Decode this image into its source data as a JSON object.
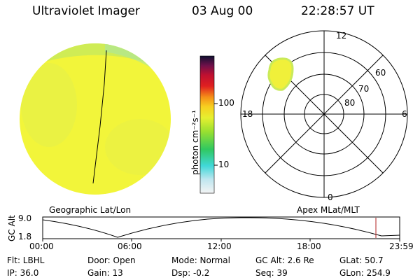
{
  "header": {
    "title": "Ultraviolet Imager",
    "date": "03 Aug 00",
    "time": "22:28:57 UT"
  },
  "colorbar": {
    "label": "photon cm⁻²s⁻¹",
    "ticks": [
      "100",
      "10"
    ]
  },
  "polar": {
    "mlt_labels": {
      "top": "12",
      "left": "18",
      "right": "6",
      "bottom": "0"
    },
    "lat_labels": [
      "60",
      "70",
      "80"
    ]
  },
  "timeline": {
    "left_label": "Geographic Lat/Lon",
    "right_label": "Apex MLat/MLT",
    "axis_title": "GC Alt",
    "y_ticks": [
      "9.0",
      "1.8"
    ],
    "x_ticks": [
      "00:00",
      "06:00",
      "12:00",
      "18:00",
      "23:59"
    ]
  },
  "status": {
    "row1": [
      {
        "key": "flt",
        "text": "Flt: LBHL"
      },
      {
        "key": "door",
        "text": "Door: Open"
      },
      {
        "key": "mode",
        "text": "Mode:  Normal"
      },
      {
        "key": "gcalt",
        "text": "GC Alt: 2.6 Re"
      },
      {
        "key": "glat",
        "text": "GLat:  50.7"
      }
    ],
    "row2": [
      {
        "key": "ip",
        "text": "IP: 36.0"
      },
      {
        "key": "gain",
        "text": "Gain: 13"
      },
      {
        "key": "dsp",
        "text": "Dsp:    -0.2"
      },
      {
        "key": "seq",
        "text": "Seq: 39"
      },
      {
        "key": "glon",
        "text": "GLon: 254.9"
      }
    ]
  },
  "colors": {
    "disk": "#f2f53a",
    "disk_speckle": "#d8ee54",
    "aurora_edge": "#c9ea5a",
    "blob": "#f0f03a",
    "marker": "#b02020"
  }
}
